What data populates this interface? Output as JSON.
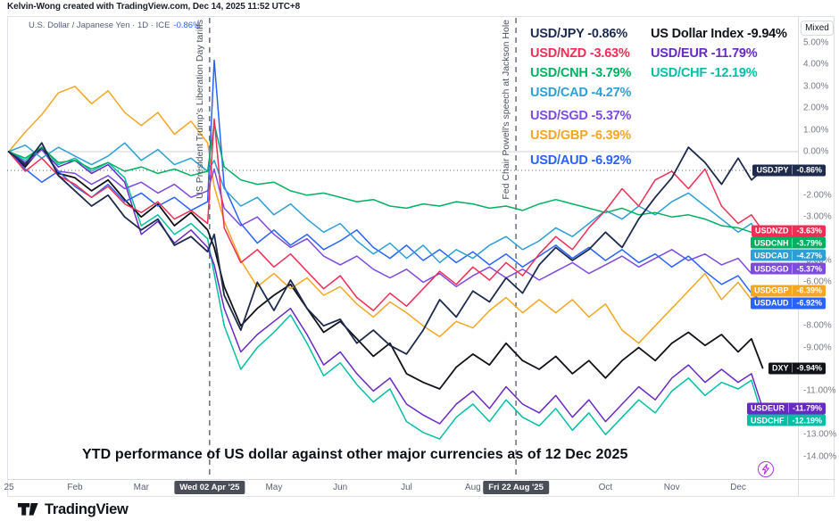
{
  "attribution": "Kelvin-Wong created with TradingView.com, Dec 14, 2025 11:52 UTC+8",
  "symbol_header": {
    "title": "U.S. Dollar / Japanese Yen · 1D · ICE",
    "change": "-0.86%"
  },
  "price_scale": {
    "mode_button": "Mixed"
  },
  "annotation": "YTD performance of US dollar against other major currencies as of 12 Dec 2025",
  "footer": {
    "brand": "TradingView"
  },
  "chart_data": {
    "type": "line",
    "title": "YTD performance of US dollar against other major currencies as of 12 Dec 2025",
    "ylabel": "YTD % change",
    "ylim": [
      -14.5,
      5.5
    ],
    "legend_position": "top-right overlay, two columns",
    "grid": "horizontal line at 0.00% plus dotted current-price line at -0.86%",
    "x_unit": "months since 2025-01-01 (0 = Jan, 11.37 = Dec 12)",
    "x": [
      0,
      0.25,
      0.5,
      0.75,
      1,
      1.25,
      1.5,
      1.75,
      2,
      2.25,
      2.5,
      2.75,
      3,
      3.1,
      3.25,
      3.5,
      3.75,
      4,
      4.25,
      4.5,
      4.75,
      5,
      5.25,
      5.5,
      5.75,
      6,
      6.25,
      6.5,
      6.75,
      7,
      7.25,
      7.5,
      7.75,
      8,
      8.25,
      8.5,
      8.75,
      9,
      9.25,
      9.5,
      9.75,
      10,
      10.25,
      10.5,
      10.75,
      11,
      11.2,
      11.37
    ],
    "price_line": {
      "value": -0.86,
      "style": "dotted"
    },
    "zero_line_color": "#ccd0da",
    "event_line_color": "#60646e",
    "series": [
      {
        "id": "USDCHF",
        "legend": "USD/CHF -12.19%",
        "badge": "USDCHF",
        "badge_value": "-12.19%",
        "end_value": -12.19,
        "color": "#00bfa5",
        "width": 1.5,
        "column": 2,
        "values": [
          0,
          -0.4,
          0.2,
          -0.6,
          -0.3,
          -0.9,
          -0.5,
          -1.2,
          -3.4,
          -2.9,
          -3.8,
          -3.3,
          -4.0,
          -5.6,
          -8.0,
          -10.0,
          -9.0,
          -8.3,
          -7.5,
          -8.8,
          -10.3,
          -9.7,
          -10.7,
          -11.5,
          -10.9,
          -12.4,
          -12.9,
          -13.2,
          -12.2,
          -11.6,
          -12.4,
          -11.4,
          -12.2,
          -12.6,
          -11.8,
          -12.8,
          -12.0,
          -13.0,
          -12.2,
          -11.4,
          -12.0,
          -11.0,
          -10.4,
          -11.2,
          -10.6,
          -10.9,
          -10.5,
          -12.19
        ]
      },
      {
        "id": "USDEUR",
        "legend": "USD/EUR -11.79%",
        "badge": "USDEUR",
        "badge_value": "-11.79%",
        "end_value": -11.79,
        "color": "#6929c4",
        "width": 1.5,
        "column": 2,
        "values": [
          0,
          -0.5,
          0.1,
          -0.7,
          -0.4,
          -1.0,
          -0.6,
          -1.4,
          -3.8,
          -3.2,
          -4.2,
          -3.6,
          -4.4,
          -5.2,
          -7.2,
          -9.2,
          -8.4,
          -7.8,
          -7.2,
          -8.4,
          -9.8,
          -9.2,
          -10.2,
          -11.0,
          -10.4,
          -11.6,
          -12.1,
          -12.5,
          -11.6,
          -11.0,
          -11.8,
          -10.8,
          -11.6,
          -12.0,
          -11.2,
          -12.2,
          -11.4,
          -12.4,
          -11.6,
          -10.8,
          -11.4,
          -10.4,
          -9.8,
          -10.6,
          -10.0,
          -10.6,
          -10.2,
          -11.79
        ]
      },
      {
        "id": "DXY",
        "legend": "US Dollar Index -9.94%",
        "badge": "DXY",
        "badge_value": "-9.94%",
        "end_value": -9.94,
        "color": "#111319",
        "width": 1.8,
        "column": 2,
        "values": [
          0,
          -0.7,
          0.2,
          -1.0,
          -1.2,
          -1.8,
          -1.3,
          -2.2,
          -3.0,
          -2.4,
          -3.4,
          -2.8,
          -3.6,
          -4.4,
          -6.2,
          -8.0,
          -7.2,
          -6.6,
          -6.1,
          -7.2,
          -8.3,
          -7.8,
          -8.6,
          -9.4,
          -8.8,
          -10.2,
          -10.6,
          -10.9,
          -9.9,
          -9.3,
          -9.8,
          -8.8,
          -9.6,
          -10.0,
          -9.4,
          -10.2,
          -9.6,
          -10.4,
          -9.6,
          -9.0,
          -9.6,
          -8.8,
          -8.3,
          -8.9,
          -8.4,
          -9.2,
          -8.6,
          -9.94
        ]
      },
      {
        "id": "USDGBP",
        "legend": "USD/GBP -6.39%",
        "badge": "USDGBP",
        "badge_value": "-6.39%",
        "end_value": -6.39,
        "color": "#f5a623",
        "width": 1.5,
        "column": 1,
        "values": [
          0,
          0.9,
          1.7,
          2.7,
          3.0,
          2.2,
          2.8,
          1.8,
          1.2,
          1.8,
          0.8,
          1.4,
          0.4,
          -1.6,
          -3.2,
          -5.0,
          -6.2,
          -5.6,
          -6.3,
          -5.8,
          -6.6,
          -6.2,
          -7.0,
          -7.6,
          -6.9,
          -7.4,
          -8.0,
          -8.5,
          -7.8,
          -8.1,
          -7.3,
          -6.7,
          -7.4,
          -6.8,
          -7.4,
          -6.8,
          -7.6,
          -7.0,
          -8.2,
          -8.8,
          -8.0,
          -7.2,
          -6.4,
          -5.6,
          -6.8,
          -6.0,
          -6.8,
          -6.39
        ]
      },
      {
        "id": "USDSGD",
        "legend": "USD/SGD -5.37%",
        "badge": "USDSGD",
        "badge_value": "-5.37%",
        "end_value": -5.37,
        "color": "#7d4be0",
        "width": 1.5,
        "column": 1,
        "values": [
          0,
          -0.6,
          0.1,
          -0.9,
          -1.0,
          -1.5,
          -1.1,
          -1.7,
          -1.4,
          -1.9,
          -1.5,
          -2.1,
          -1.8,
          -0.8,
          -2.6,
          -3.4,
          -3.0,
          -3.8,
          -4.4,
          -4.0,
          -4.8,
          -5.2,
          -4.8,
          -5.4,
          -5.8,
          -5.4,
          -6.0,
          -5.6,
          -6.2,
          -5.7,
          -5.3,
          -5.8,
          -5.4,
          -5.9,
          -5.5,
          -5.1,
          -5.6,
          -5.2,
          -4.8,
          -5.3,
          -4.9,
          -4.5,
          -5.0,
          -4.7,
          -5.2,
          -4.9,
          -5.6,
          -5.37
        ]
      },
      {
        "id": "USDAUD",
        "legend": "USD/AUD -6.92%",
        "badge": "USDAUD",
        "badge_value": "-6.92%",
        "end_value": -6.92,
        "color": "#2962ff",
        "width": 1.5,
        "column": 1,
        "values": [
          0,
          -0.8,
          -1.4,
          -0.9,
          -1.6,
          -2.1,
          -1.5,
          -2.3,
          -1.9,
          -2.5,
          -2.1,
          -2.7,
          -2.3,
          4.2,
          -1.6,
          -3.3,
          -4.2,
          -3.6,
          -4.3,
          -3.8,
          -4.5,
          -4.1,
          -3.6,
          -4.4,
          -4.9,
          -4.3,
          -5.0,
          -4.5,
          -5.1,
          -4.6,
          -5.2,
          -4.7,
          -5.3,
          -4.8,
          -4.3,
          -4.9,
          -4.4,
          -5.0,
          -4.5,
          -5.1,
          -4.7,
          -5.3,
          -4.8,
          -5.5,
          -6.1,
          -5.7,
          -6.5,
          -6.92
        ]
      },
      {
        "id": "USDCAD",
        "legend": "USD/CAD -4.27%",
        "badge": "USDCAD",
        "badge_value": "-4.27%",
        "end_value": -4.27,
        "color": "#2e9fd4",
        "width": 1.5,
        "column": 1,
        "values": [
          0,
          0.3,
          -0.3,
          0.2,
          -0.2,
          -0.6,
          -0.2,
          0.4,
          -0.4,
          0.1,
          -0.6,
          -0.3,
          -0.9,
          -0.4,
          -1.7,
          -2.5,
          -2.1,
          -2.9,
          -2.4,
          -3.1,
          -3.7,
          -3.3,
          -4.1,
          -4.7,
          -4.2,
          -4.9,
          -4.3,
          -5.1,
          -4.5,
          -4.9,
          -4.3,
          -3.9,
          -4.5,
          -4.1,
          -3.5,
          -3.9,
          -3.3,
          -2.7,
          -3.1,
          -2.5,
          -2.9,
          -2.3,
          -1.9,
          -2.5,
          -3.1,
          -3.7,
          -3.3,
          -4.27
        ]
      },
      {
        "id": "USDCNH",
        "legend": "USD/CNH -3.79%",
        "badge": "USDCNH",
        "badge_value": "-3.79%",
        "end_value": -3.79,
        "color": "#00b061",
        "width": 1.5,
        "column": 1,
        "values": [
          0,
          -0.3,
          0.2,
          -0.5,
          -0.4,
          -0.8,
          -0.5,
          -0.9,
          -0.7,
          -1.0,
          -0.8,
          -1.1,
          -0.9,
          1.3,
          -0.7,
          -1.3,
          -1.5,
          -1.4,
          -1.8,
          -2.0,
          -1.9,
          -2.1,
          -2.3,
          -2.2,
          -2.5,
          -2.6,
          -2.4,
          -2.5,
          -2.3,
          -2.4,
          -2.6,
          -2.5,
          -2.7,
          -2.4,
          -2.2,
          -2.4,
          -2.6,
          -2.8,
          -2.6,
          -2.9,
          -2.8,
          -3.0,
          -2.9,
          -3.1,
          -3.4,
          -3.5,
          -3.7,
          -3.79
        ]
      },
      {
        "id": "USDNZD",
        "legend": "USD/NZD -3.63%",
        "badge": "USDNZD",
        "badge_value": "-3.63%",
        "end_value": -3.63,
        "color": "#ef2e55",
        "width": 1.5,
        "column": 1,
        "values": [
          0,
          -0.9,
          -0.3,
          -1.1,
          -1.5,
          -2.1,
          -1.6,
          -2.4,
          -2.8,
          -2.3,
          -3.1,
          -2.7,
          -3.3,
          1.5,
          -3.5,
          -5.1,
          -4.5,
          -5.3,
          -4.7,
          -5.5,
          -6.3,
          -5.7,
          -6.7,
          -7.3,
          -6.5,
          -7.1,
          -6.3,
          -5.5,
          -6.1,
          -5.3,
          -5.9,
          -5.1,
          -5.7,
          -4.7,
          -3.9,
          -4.5,
          -3.5,
          -2.7,
          -1.7,
          -2.5,
          -1.3,
          -0.9,
          -1.7,
          -0.8,
          -2.5,
          -3.3,
          -2.9,
          -3.63
        ]
      },
      {
        "id": "USDJPY",
        "legend": "USD/JPY -0.86%",
        "badge": "USDJPY",
        "badge_value": "-0.86%",
        "end_value": -0.86,
        "color": "#1e2b4d",
        "width": 1.8,
        "column": 1,
        "values": [
          0,
          -0.6,
          0.4,
          -1.1,
          -1.8,
          -2.5,
          -2.0,
          -3.0,
          -3.6,
          -3.1,
          -4.3,
          -3.9,
          -4.6,
          -3.8,
          -6.6,
          -8.2,
          -6.0,
          -7.3,
          -5.9,
          -7.2,
          -8.0,
          -7.7,
          -8.8,
          -8.2,
          -8.9,
          -9.3,
          -8.2,
          -6.8,
          -7.6,
          -6.4,
          -6.9,
          -5.8,
          -6.5,
          -5.2,
          -4.4,
          -5.0,
          -4.5,
          -3.7,
          -4.4,
          -3.1,
          -2.1,
          -1.2,
          0.2,
          -0.5,
          -1.5,
          -0.3,
          -1.3,
          -0.86
        ]
      }
    ],
    "legend": {
      "col1": [
        "USDJPY",
        "USDNZD",
        "USDCNH",
        "USDCAD",
        "USDSGD",
        "USDGBP",
        "USDAUD"
      ],
      "col2": [
        "DXY",
        "USDEUR",
        "USDCHF"
      ]
    },
    "events": [
      {
        "t": 3.03,
        "label": "US President Trump's Liberation Day tariffs",
        "date_badge": "Wed 02 Apr '25"
      },
      {
        "t": 7.65,
        "label": "Fed Chair Powell's speech at Jackson Hole",
        "date_badge": "Fri 22 Aug '25"
      }
    ],
    "x_ticks": [
      {
        "t": 0,
        "label": "25"
      },
      {
        "t": 1,
        "label": "Feb"
      },
      {
        "t": 2,
        "label": "Mar"
      },
      {
        "t": 4,
        "label": "May"
      },
      {
        "t": 5,
        "label": "Jun"
      },
      {
        "t": 6,
        "label": "Jul"
      },
      {
        "t": 7,
        "label": "Aug"
      },
      {
        "t": 9,
        "label": "Oct"
      },
      {
        "t": 10,
        "label": "Nov"
      },
      {
        "t": 11,
        "label": "Dec"
      }
    ],
    "y_ticks": [
      {
        "v": 5,
        "label": "5.00%"
      },
      {
        "v": 4,
        "label": "4.00%"
      },
      {
        "v": 3,
        "label": "3.00%"
      },
      {
        "v": 2,
        "label": "2.00%"
      },
      {
        "v": 1,
        "label": "1.00%"
      },
      {
        "v": 0,
        "label": "0.00%"
      },
      {
        "v": -2,
        "label": "-2.00%"
      },
      {
        "v": -3,
        "label": "-3.00%"
      },
      {
        "v": -5,
        "label": "-5.00%"
      },
      {
        "v": -6,
        "label": "-6.00%"
      },
      {
        "v": -8,
        "label": "-8.00%"
      },
      {
        "v": -9,
        "label": "-9.00%"
      },
      {
        "v": -11,
        "label": "-11.00%"
      },
      {
        "v": -13,
        "label": "-13.00%"
      },
      {
        "v": -14,
        "label": "-14.00%"
      }
    ]
  }
}
